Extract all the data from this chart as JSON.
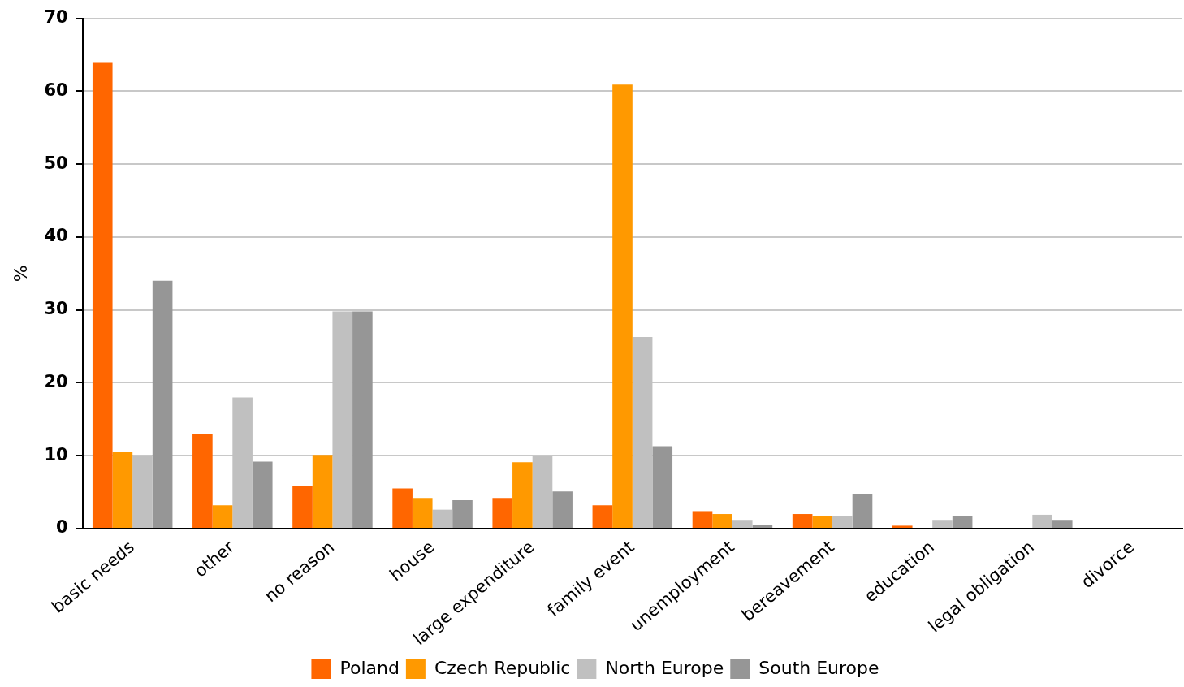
{
  "chart_data": {
    "type": "bar",
    "ylabel": "%",
    "categories": [
      "basic needs",
      "other",
      "no reason",
      "house",
      "large expenditure",
      "family event",
      "unemployment",
      "bereavement",
      "education",
      "legal obligation",
      "divorce"
    ],
    "series": [
      {
        "name": "Poland",
        "color": "#ff6600",
        "values": [
          64,
          13,
          5.9,
          5.5,
          4.2,
          3.2,
          2.4,
          2,
          0.4,
          0,
          0
        ]
      },
      {
        "name": "Czech Republic",
        "color": "#ff9900",
        "values": [
          10.5,
          3.2,
          10.1,
          4.2,
          9.1,
          60.9,
          2,
          1.7,
          0,
          0,
          0
        ]
      },
      {
        "name": "North Europe",
        "color": "#c0c0c0",
        "values": [
          10,
          18,
          29.8,
          2.6,
          10,
          26.3,
          1.2,
          1.7,
          1.2,
          1.9,
          0
        ]
      },
      {
        "name": "South Europe",
        "color": "#969696",
        "values": [
          34,
          9.2,
          29.8,
          3.9,
          5.1,
          11.3,
          0.5,
          4.8,
          1.7,
          1.2,
          0
        ]
      }
    ],
    "ylim": [
      0,
      70
    ],
    "yticks": [
      0,
      10,
      20,
      30,
      40,
      50,
      60,
      70
    ],
    "grid": "y",
    "legend": "bottom"
  }
}
